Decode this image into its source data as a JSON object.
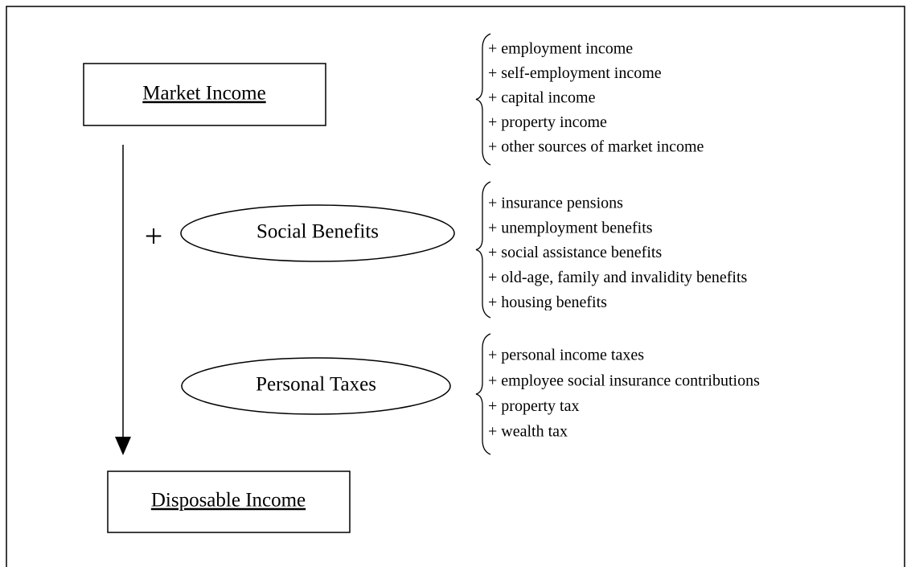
{
  "market_income": {
    "label": "Market Income",
    "items": [
      "+ employment income",
      "+ self-employment income",
      "+ capital income",
      "+ property income",
      "+ other sources of market income"
    ]
  },
  "operator": "+",
  "social_benefits": {
    "label": "Social Benefits",
    "items": [
      "+ insurance pensions",
      "+ unemployment benefits",
      "+ social assistance benefits",
      "+ old-age, family and invalidity benefits",
      "+ housing benefits"
    ]
  },
  "personal_taxes": {
    "label": "Personal Taxes",
    "items": [
      "+ personal income taxes",
      "+ employee social insurance contributions",
      "+ property tax",
      "+ wealth tax"
    ]
  },
  "disposable_income": {
    "label": "Disposable Income"
  }
}
